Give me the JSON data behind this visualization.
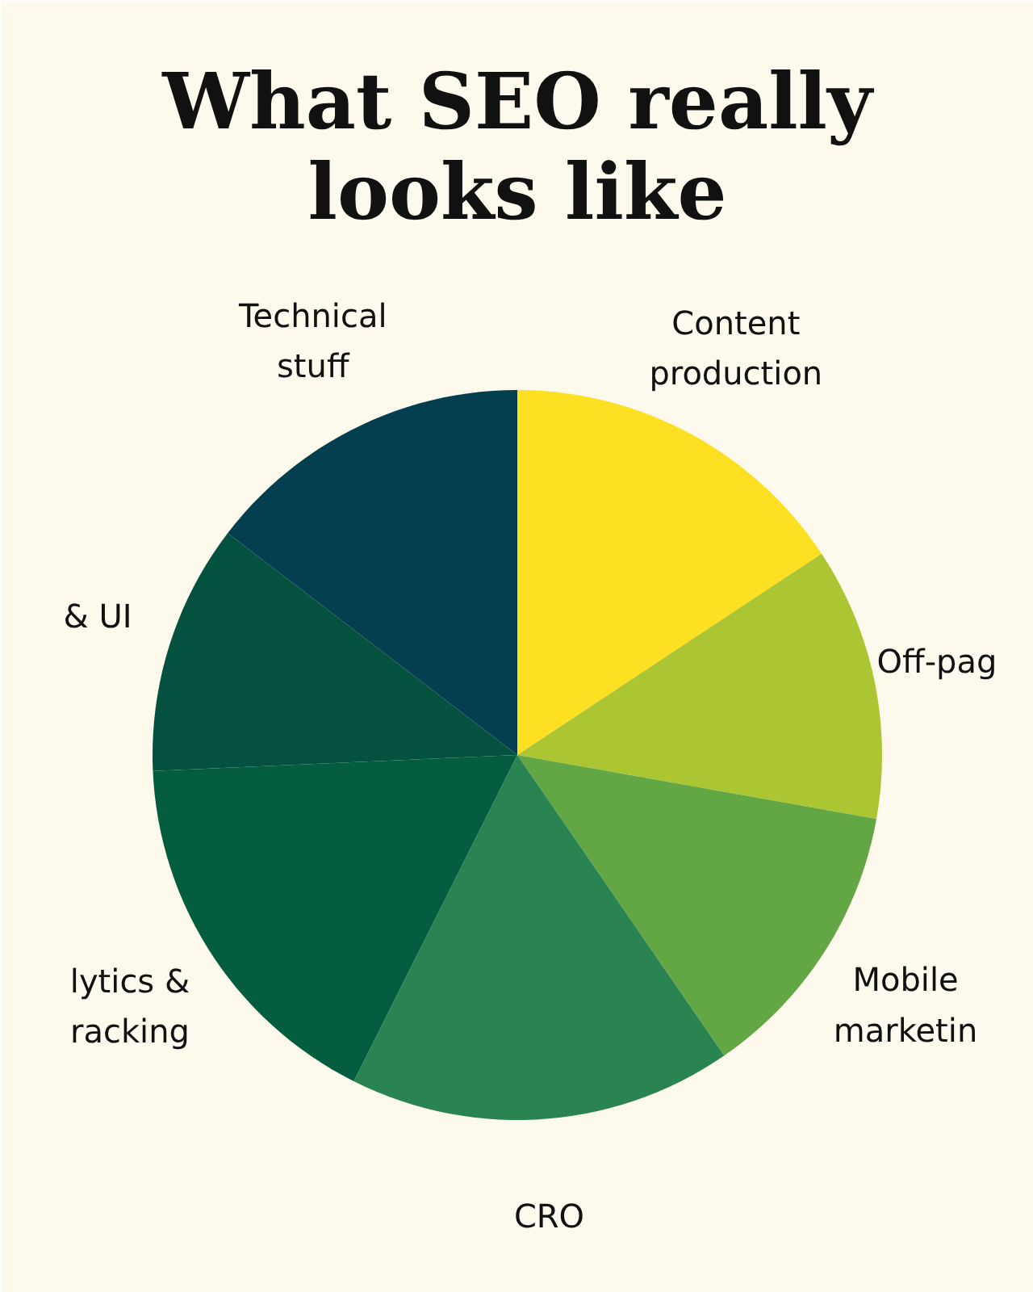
{
  "chart_data": {
    "type": "pie",
    "title": "What SEO really\nlooks like",
    "categories": [
      "Content\nproduction",
      "Off-pag",
      "Mobile\nmarketin",
      "CRO",
      "lytics &\nracking",
      "& UI",
      "Technical\nstuff"
    ],
    "values": [
      15.7,
      12.1,
      12.6,
      17.0,
      16.9,
      11.1,
      14.6
    ],
    "colors": [
      "#fde021",
      "#acc532",
      "#62a744",
      "#2a8451",
      "#035d3e",
      "#05513f",
      "#033f4f"
    ]
  }
}
